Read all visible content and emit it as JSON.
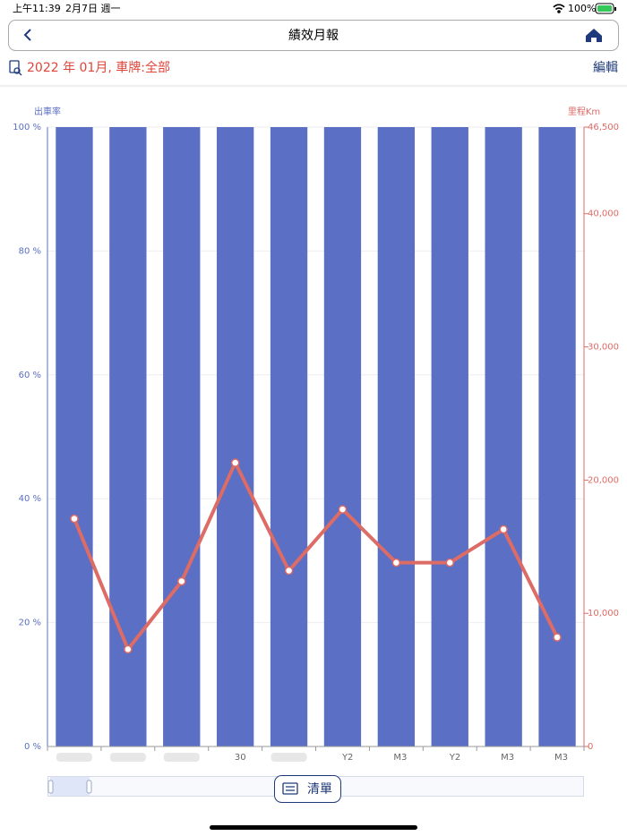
{
  "status_bar": {
    "time": "上午11:39",
    "date": "2月7日 週一",
    "battery": "100%"
  },
  "header": {
    "title": "績效月報"
  },
  "subheader": {
    "filter": "2022 年 01月, 車牌:全部",
    "edit": "編輯"
  },
  "footer": {
    "list_button": "清單"
  },
  "chart_data": {
    "type": "bar",
    "y_label": "出車率",
    "y2_label": "里程Km",
    "categories": [
      null,
      null,
      null,
      "30",
      null,
      "Y2",
      "M3",
      "Y2",
      "M3",
      "M3"
    ],
    "series": [
      {
        "type": "bar",
        "color": "#5b6fc4",
        "values": [
          100,
          100,
          100,
          100,
          100,
          100,
          100,
          100,
          100,
          100
        ]
      },
      {
        "type": "line",
        "axis": "y2",
        "color": "#dd6b66",
        "values": [
          17100,
          7300,
          12400,
          21300,
          13200,
          17800,
          13800,
          13800,
          16300,
          8200
        ]
      }
    ],
    "ylim": [
      0,
      100
    ],
    "yticks": [
      {
        "value": 0,
        "label": "0 %"
      },
      {
        "value": 20,
        "label": "20 %"
      },
      {
        "value": 40,
        "label": "40 %"
      },
      {
        "value": 60,
        "label": "60 %"
      },
      {
        "value": 80,
        "label": "80 %"
      },
      {
        "value": 100,
        "label": "100 %"
      }
    ],
    "y2lim": [
      0,
      46500
    ],
    "y2ticks": [
      0,
      {
        "value": 10000,
        "label": "10,000"
      },
      {
        "value": 20000,
        "label": "20,000"
      },
      {
        "value": 30000,
        "label": "30,000"
      },
      {
        "value": 40000,
        "label": "40,000"
      },
      {
        "value": 46500,
        "label": "46,500"
      }
    ],
    "grid": true
  }
}
